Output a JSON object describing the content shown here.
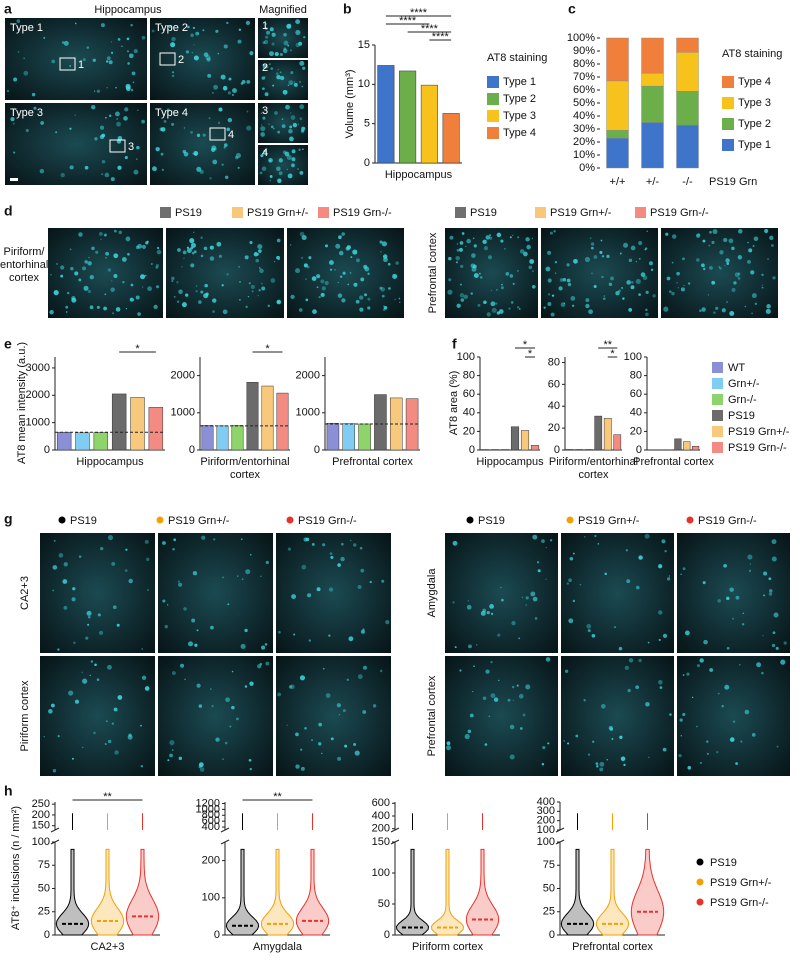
{
  "panel_labels": [
    "a",
    "b",
    "c",
    "d",
    "e",
    "f",
    "g",
    "h"
  ],
  "a": {
    "title": "Hippocampus",
    "magnified_title": "Magnified",
    "types": [
      "Type 1",
      "Type 2",
      "Type 3",
      "Type 4"
    ],
    "region_numbers": [
      "1",
      "2",
      "3",
      "4"
    ],
    "magnified_numbers": [
      "1",
      "2",
      "3",
      "4"
    ]
  },
  "d": {
    "legends": [
      {
        "names": [
          "PS19",
          "PS19 Grn+/-",
          "PS19 Grn-/-"
        ],
        "colors": [
          "#6f6f6f",
          "#f9c77a",
          "#f48a80"
        ]
      },
      {
        "names": [
          "PS19",
          "PS19 Grn+/-",
          "PS19 Grn-/-"
        ],
        "colors": [
          "#6f6f6f",
          "#f9c77a",
          "#f48a80"
        ]
      }
    ],
    "regions": [
      "Piriform/ entorhinal cortex",
      "Prefrontal cortex"
    ]
  },
  "g": {
    "legends": [
      {
        "names": [
          "PS19",
          "PS19 Grn+/-",
          "PS19 Grn-/-"
        ],
        "colors": [
          "#000000",
          "#f5a000",
          "#e8322a"
        ]
      },
      {
        "names": [
          "PS19",
          "PS19 Grn+/-",
          "PS19 Grn-/-"
        ],
        "colors": [
          "#000000",
          "#f5a000",
          "#e8322a"
        ]
      }
    ],
    "regions": [
      "CA2+3",
      "Piriform cortex",
      "Amygdala",
      "Prefrontal cortex"
    ]
  },
  "legend_ef": {
    "names": [
      "WT",
      "Grn+/-",
      "Grn-/-",
      "PS19",
      "PS19 Grn+/-",
      "PS19 Grn-/-"
    ],
    "colors": [
      "#8a8fd6",
      "#7fcdf2",
      "#8ed46b",
      "#6b6b6b",
      "#f8c97c",
      "#f38b82"
    ]
  },
  "legend_h": {
    "names": [
      "PS19",
      "PS19 Grn+/-",
      "PS19 Grn-/-"
    ],
    "colors": [
      "#000000",
      "#f5a000",
      "#e8322a"
    ]
  },
  "chart_data": [
    {
      "type": "bar",
      "ylabel": "Volume (mm³)",
      "xlabel": "Hippocampus",
      "ylim": [
        0,
        15
      ],
      "yticks": [
        0,
        5,
        10,
        15
      ],
      "legend_title": "AT8 staining",
      "series": [
        {
          "name": "Type 1",
          "color": "#3e74c9",
          "values": [
            12.4
          ]
        },
        {
          "name": "Type 2",
          "color": "#6cae4a",
          "values": [
            11.7
          ]
        },
        {
          "name": "Type 3",
          "color": "#f7c21b",
          "values": [
            9.9
          ]
        },
        {
          "name": "Type 4",
          "color": "#f07f3c",
          "values": [
            6.3
          ]
        }
      ],
      "significance": [
        "****",
        "****",
        "****",
        "****"
      ]
    },
    {
      "type": "stacked_bar",
      "categories": [
        "+/+",
        "+/-",
        "-/-"
      ],
      "xlabel": "PS19 Grn",
      "ylim": [
        0,
        100
      ],
      "legend_title": "AT8 staining",
      "yticks": [
        {
          "value": 0,
          "label": "0%"
        },
        {
          "value": 10,
          "label": "10%"
        },
        {
          "value": 20,
          "label": "20%"
        },
        {
          "value": 30,
          "label": "30%"
        },
        {
          "value": 40,
          "label": "40%"
        },
        {
          "value": 50,
          "label": "50%"
        },
        {
          "value": 60,
          "label": "60%"
        },
        {
          "value": 70,
          "label": "70%"
        },
        {
          "value": 80,
          "label": "80%"
        },
        {
          "value": 90,
          "label": "90%"
        },
        {
          "value": 100,
          "label": "100%"
        }
      ],
      "series": [
        {
          "name": "Type 1",
          "color": "#3e74c9",
          "values": [
            23,
            35,
            33
          ]
        },
        {
          "name": "Type 2",
          "color": "#6cae4a",
          "values": [
            6,
            28,
            26
          ]
        },
        {
          "name": "Type 3",
          "color": "#f7c21b",
          "values": [
            38,
            10,
            30
          ]
        },
        {
          "name": "Type 4",
          "color": "#f07f3c",
          "values": [
            33,
            27,
            11
          ]
        }
      ]
    },
    {
      "type": "bar",
      "ylabel": "AT8 mean intensity (a.u.)",
      "xlabel": "Hippocampus",
      "ylim": [
        0,
        3400
      ],
      "yticks": [
        0,
        1000,
        2000,
        3000
      ],
      "values": [
        650,
        630,
        640,
        2050,
        1920,
        1560
      ],
      "reference_line": 650,
      "significance": [
        "*"
      ]
    },
    {
      "type": "bar",
      "xlabel": "Piriform/entorhinal cortex",
      "ylim": [
        0,
        2500
      ],
      "yticks": [
        0,
        1000,
        2000
      ],
      "values": [
        660,
        650,
        660,
        1820,
        1720,
        1530
      ],
      "reference_line": 650,
      "significance": [
        "*"
      ]
    },
    {
      "type": "bar",
      "xlabel": "Prefrontal cortex",
      "ylim": [
        0,
        2500
      ],
      "yticks": [
        0,
        1000,
        2000
      ],
      "values": [
        720,
        710,
        700,
        1490,
        1400,
        1380
      ],
      "reference_line": 700
    },
    {
      "type": "bar",
      "ylabel": "AT8 area (%)",
      "xlabel": "Hippocampus",
      "ylim": [
        0,
        100
      ],
      "yticks": [
        0,
        20,
        40,
        60,
        80,
        100
      ],
      "values": [
        0.5,
        0.5,
        0.5,
        25,
        21,
        5
      ],
      "significance": [
        "*",
        "*"
      ]
    },
    {
      "type": "bar",
      "xlabel": "Piriform/entorhinal cortex",
      "ylim": [
        0,
        85
      ],
      "yticks": [
        0,
        20,
        40,
        60,
        80
      ],
      "values": [
        0.5,
        0.5,
        0.5,
        31,
        29,
        14
      ],
      "significance": [
        "**",
        "*"
      ]
    },
    {
      "type": "bar",
      "xlabel": "Prefrontal cortex",
      "ylim": [
        0,
        100
      ],
      "yticks": [
        0,
        20,
        40,
        60,
        80,
        100
      ],
      "values": [
        0.3,
        0.3,
        0.3,
        12,
        9,
        4
      ]
    },
    {
      "type": "violin",
      "ylabel": "AT8⁺ inclusions (n / mm²)",
      "xlabel": "CA2+3",
      "ylim": [
        0,
        100
      ],
      "yticks": [
        0,
        25,
        50,
        75,
        100
      ],
      "ylim_upper": [
        130,
        260
      ],
      "yticks_upper": [
        150,
        200,
        250
      ],
      "values": [
        12,
        15,
        20
      ],
      "significance": [
        "**"
      ]
    },
    {
      "type": "violin",
      "xlabel": "Amygdala",
      "ylim": [
        0,
        250
      ],
      "yticks": [
        0,
        100,
        200
      ],
      "ylim_upper": [
        300,
        1250
      ],
      "yticks_upper": [
        400,
        600,
        800,
        1000,
        1200
      ],
      "values": [
        25,
        30,
        38
      ],
      "significance": [
        "**"
      ]
    },
    {
      "type": "violin",
      "xlabel": "Piriform cortex",
      "ylim": [
        0,
        150
      ],
      "yticks": [
        0,
        50,
        100,
        150
      ],
      "ylim_upper": [
        180,
        620
      ],
      "yticks_upper": [
        200,
        400,
        600
      ],
      "values": [
        12,
        12,
        25
      ]
    },
    {
      "type": "violin",
      "xlabel": "Prefrontal cortex",
      "ylim": [
        0,
        100
      ],
      "yticks": [
        0,
        25,
        50,
        75,
        100
      ],
      "ylim_upper": [
        100,
        400
      ],
      "yticks_upper": [
        100,
        200,
        300,
        400
      ],
      "values": [
        12,
        12,
        25
      ]
    }
  ]
}
